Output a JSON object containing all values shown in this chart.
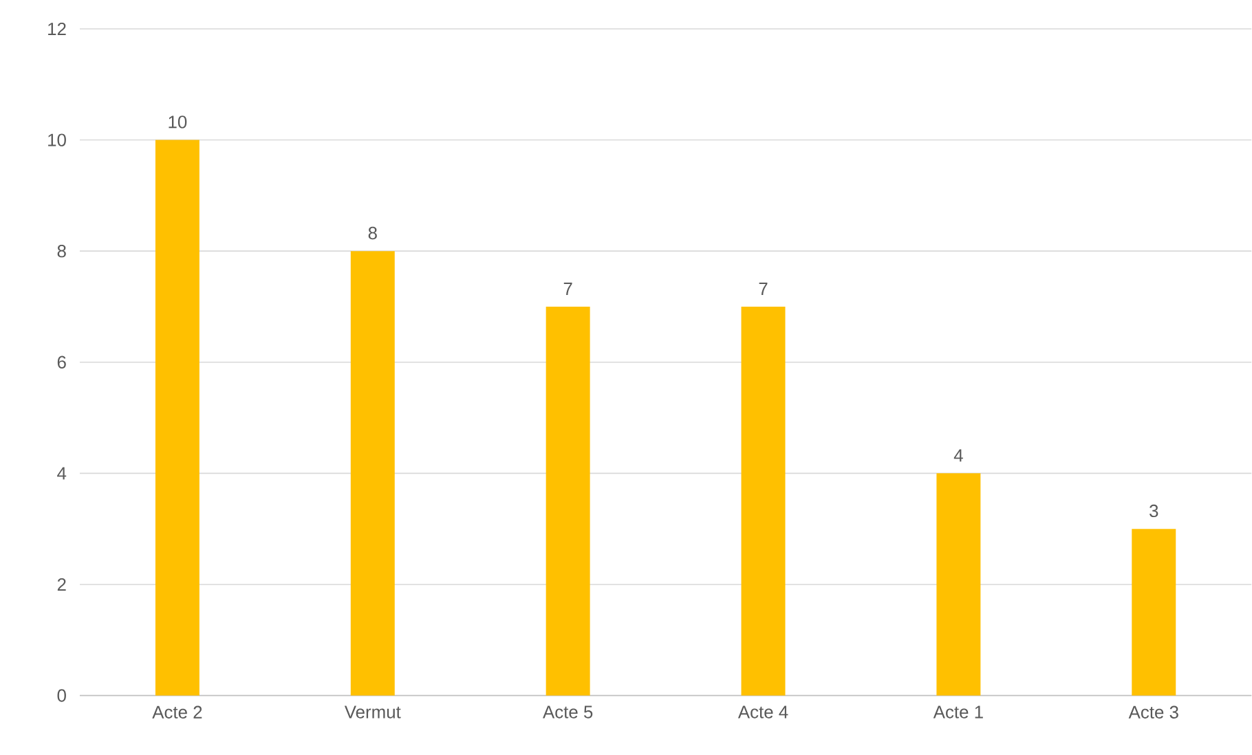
{
  "chart_data": {
    "type": "bar",
    "categories": [
      "Acte 2",
      "Vermut",
      "Acte 5",
      "Acte 4",
      "Acte 1",
      "Acte 3"
    ],
    "values": [
      10,
      8,
      7,
      7,
      4,
      3
    ],
    "color": "#ffc000",
    "ylim": [
      0,
      12
    ],
    "yticks": [
      0,
      2,
      4,
      6,
      8,
      10,
      12
    ],
    "grid": "y",
    "data_labels": true
  }
}
